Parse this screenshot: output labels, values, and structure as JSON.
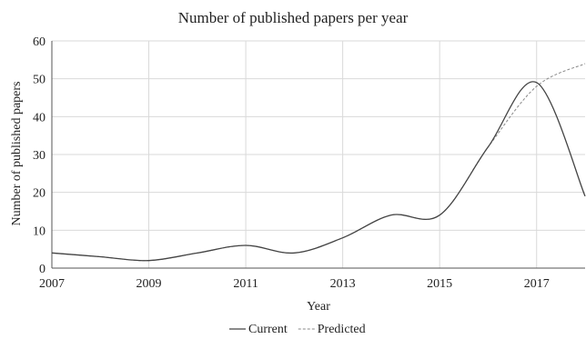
{
  "chart_data": {
    "type": "line",
    "title": "Number of published papers per year",
    "xlabel": "Year",
    "ylabel": "Number of published papers",
    "xlim": [
      2007,
      2018
    ],
    "ylim": [
      0,
      60
    ],
    "x_ticks": [
      2007,
      2009,
      2011,
      2013,
      2015,
      2017
    ],
    "y_ticks": [
      0,
      10,
      20,
      30,
      40,
      50,
      60
    ],
    "grid": true,
    "legend": "bottom-center",
    "series": [
      {
        "name": "Current",
        "color": "#444444",
        "style": "solid",
        "x": [
          2007,
          2008,
          2009,
          2010,
          2011,
          2012,
          2013,
          2014,
          2015,
          2016,
          2017,
          2018
        ],
        "y": [
          4,
          3,
          2,
          4,
          6,
          4,
          8,
          14,
          14,
          32,
          49,
          19
        ]
      },
      {
        "name": "Predicted",
        "color": "#888888",
        "style": "dashed",
        "x": [
          2007,
          2008,
          2009,
          2010,
          2011,
          2012,
          2013,
          2014,
          2015,
          2016,
          2017,
          2018
        ],
        "y": [
          4,
          3,
          2,
          4,
          6,
          4,
          8,
          14,
          14,
          32,
          48,
          54
        ]
      }
    ]
  }
}
